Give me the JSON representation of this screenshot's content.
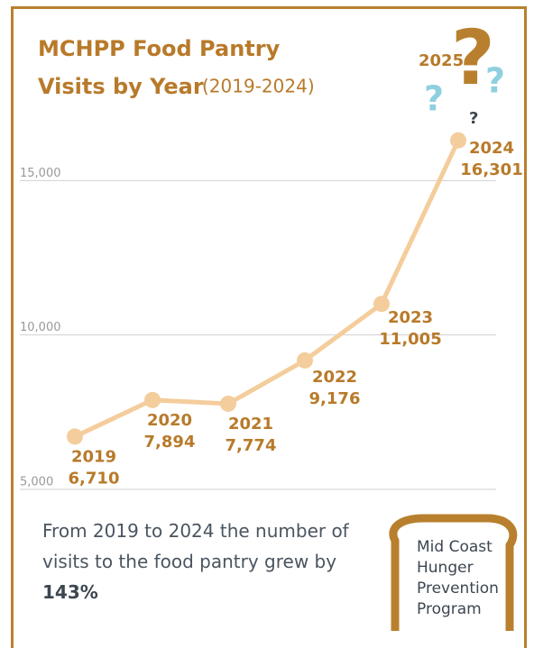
{
  "title_lines": [
    "MCHPP Food Pantry",
    "Visits by Year"
  ],
  "subtitle": "(2019-2024)",
  "chart_data": {
    "type": "line",
    "categories": [
      "2019",
      "2020",
      "2021",
      "2022",
      "2023",
      "2024"
    ],
    "series": [
      {
        "name": "Visits",
        "color": "#f4cd9c",
        "values": [
          6710,
          7894,
          7774,
          9176,
          11005,
          16301
        ],
        "value_labels": [
          "6,710",
          "7,894",
          "7,774",
          "9,176",
          "11,005",
          "16,301"
        ]
      }
    ],
    "ylim": [
      5000,
      20000
    ],
    "yticks": [
      {
        "value": 5000,
        "label": "5,000"
      },
      {
        "value": 10000,
        "label": "10,000"
      },
      {
        "value": 15000,
        "label": "15,000"
      }
    ],
    "grid": true,
    "annotation": {
      "label": "2025",
      "marks": [
        "?",
        "?",
        "?",
        "?"
      ]
    }
  },
  "footnote": {
    "text": "From 2019 to 2024 the number of visits to the food pantry grew by",
    "highlight": "143%"
  },
  "logo_lines": [
    "Mid Coast",
    "Hunger",
    "Prevention",
    "Program"
  ]
}
